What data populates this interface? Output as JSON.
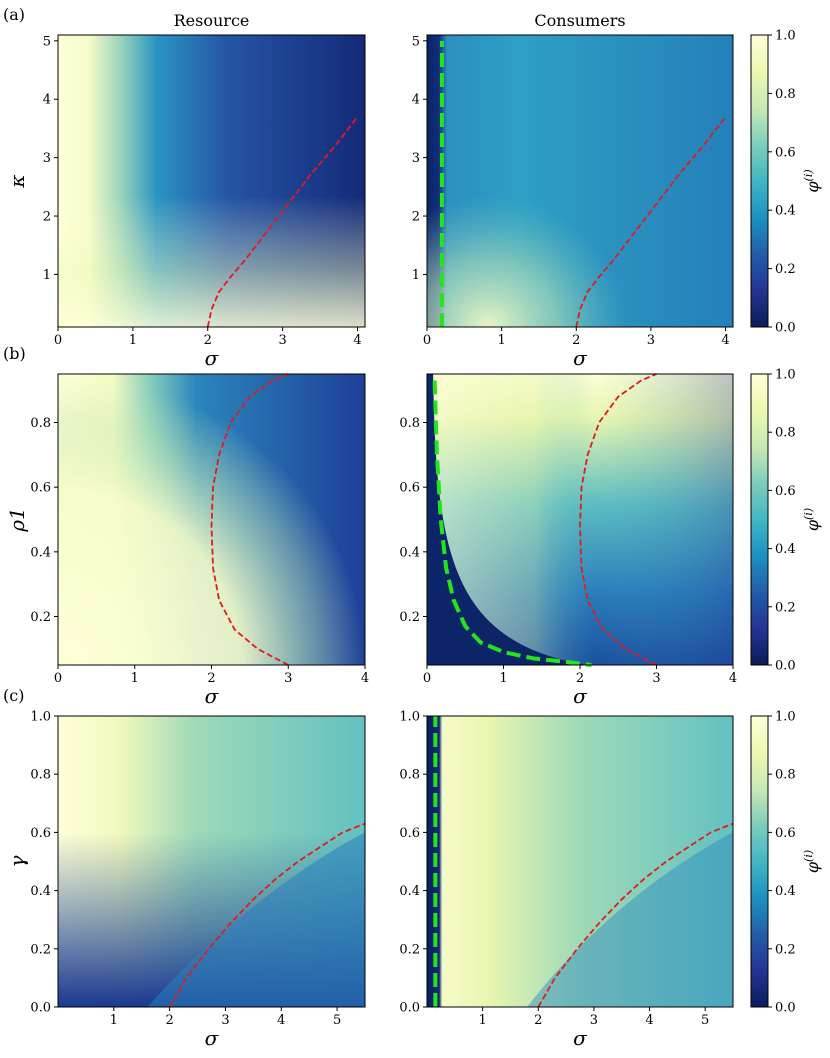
{
  "figure": {
    "column_titles": [
      "Resource",
      "Consumers"
    ],
    "colorbar": {
      "label": "φ(i)",
      "ticks": [
        0.0,
        0.2,
        0.4,
        0.6,
        0.8,
        1.0
      ],
      "tick_labels": [
        "0.0",
        "0.2",
        "0.4",
        "0.6",
        "0.8",
        "1.0"
      ],
      "colors": [
        "#081d58",
        "#253494",
        "#225ea8",
        "#1d91c0",
        "#41b6c4",
        "#7fcdbb",
        "#c7e9b4",
        "#edf8b1",
        "#ffffd9"
      ]
    },
    "line_colors": {
      "red": "#e41a1c",
      "green": "#22e61c"
    }
  },
  "chart_data": [
    {
      "type": "heatmap",
      "panel_label": "(a)",
      "column": "Resource",
      "xlabel": "σ",
      "ylabel": "κ",
      "xlim": [
        0,
        4.1
      ],
      "ylim": [
        0.1,
        5.1
      ],
      "xticks": [
        0,
        1,
        2,
        3,
        4
      ],
      "xtick_labels": [
        "0",
        "1",
        "2",
        "3",
        "4"
      ],
      "yticks": [
        1,
        2,
        3,
        4,
        5
      ],
      "ytick_labels": [
        "1",
        "2",
        "3",
        "4",
        "5"
      ],
      "red_curve": {
        "x": [
          2.0,
          2.05,
          2.15,
          2.3,
          2.5,
          2.8,
          3.1,
          3.4,
          3.7,
          4.0
        ],
        "y": [
          0.1,
          0.4,
          0.7,
          0.95,
          1.25,
          1.75,
          2.25,
          2.75,
          3.2,
          3.7
        ]
      },
      "green_curve": null
    },
    {
      "type": "heatmap",
      "panel_label": "",
      "column": "Consumers",
      "xlabel": "σ",
      "ylabel": "",
      "xlim": [
        0,
        4.1
      ],
      "ylim": [
        0.1,
        5.1
      ],
      "xticks": [
        0,
        1,
        2,
        3,
        4
      ],
      "xtick_labels": [
        "0",
        "1",
        "2",
        "3",
        "4"
      ],
      "yticks": [
        1,
        2,
        3,
        4,
        5
      ],
      "ytick_labels": [
        "1",
        "2",
        "3",
        "4",
        "5"
      ],
      "red_curve": {
        "x": [
          2.0,
          2.05,
          2.15,
          2.3,
          2.5,
          2.8,
          3.1,
          3.4,
          3.7,
          4.0
        ],
        "y": [
          0.1,
          0.4,
          0.7,
          0.95,
          1.25,
          1.75,
          2.25,
          2.75,
          3.2,
          3.7
        ]
      },
      "green_curve": {
        "x": [
          0.2,
          0.2
        ],
        "y": [
          0.1,
          5.0
        ]
      }
    },
    {
      "type": "heatmap",
      "panel_label": "(b)",
      "column": "Resource",
      "xlabel": "σ",
      "ylabel": "ρ1",
      "xlim": [
        0,
        4
      ],
      "ylim": [
        0.05,
        0.95
      ],
      "xticks": [
        0,
        1,
        2,
        3,
        4
      ],
      "xtick_labels": [
        "0",
        "1",
        "2",
        "3",
        "4"
      ],
      "yticks": [
        0.2,
        0.4,
        0.6,
        0.8
      ],
      "ytick_labels": [
        "0.2",
        "0.4",
        "0.6",
        "0.8"
      ],
      "red_curve": {
        "x": [
          3.0,
          2.6,
          2.3,
          2.1,
          2.02,
          2.0,
          2.02,
          2.1,
          2.25,
          2.5,
          2.8,
          3.0
        ],
        "y": [
          0.05,
          0.1,
          0.16,
          0.25,
          0.35,
          0.48,
          0.6,
          0.7,
          0.8,
          0.88,
          0.93,
          0.95
        ]
      },
      "green_curve": null
    },
    {
      "type": "heatmap",
      "panel_label": "",
      "column": "Consumers",
      "xlabel": "σ",
      "ylabel": "",
      "xlim": [
        0,
        4
      ],
      "ylim": [
        0.05,
        0.95
      ],
      "xticks": [
        0,
        1,
        2,
        3,
        4
      ],
      "xtick_labels": [
        "0",
        "1",
        "2",
        "3",
        "4"
      ],
      "yticks": [
        0.2,
        0.4,
        0.6,
        0.8
      ],
      "ytick_labels": [
        "0.2",
        "0.4",
        "0.6",
        "0.8"
      ],
      "red_curve": {
        "x": [
          3.0,
          2.6,
          2.3,
          2.1,
          2.02,
          2.0,
          2.02,
          2.1,
          2.25,
          2.5,
          2.8,
          3.0
        ],
        "y": [
          0.05,
          0.1,
          0.16,
          0.25,
          0.35,
          0.48,
          0.6,
          0.7,
          0.8,
          0.88,
          0.93,
          0.95
        ]
      },
      "green_curve": {
        "x": [
          0.1,
          0.13,
          0.18,
          0.25,
          0.35,
          0.5,
          0.7,
          1.0,
          1.4,
          1.8,
          2.15
        ],
        "y": [
          0.93,
          0.7,
          0.5,
          0.35,
          0.25,
          0.17,
          0.12,
          0.09,
          0.07,
          0.06,
          0.05
        ]
      }
    },
    {
      "type": "heatmap",
      "panel_label": "(c)",
      "column": "Resource",
      "xlabel": "σ",
      "ylabel": "γ",
      "xlim": [
        0,
        5.5
      ],
      "ylim": [
        0,
        1
      ],
      "xticks": [
        1,
        2,
        3,
        4,
        5
      ],
      "xtick_labels": [
        "1",
        "2",
        "3",
        "4",
        "5"
      ],
      "yticks": [
        0.0,
        0.2,
        0.4,
        0.6,
        0.8,
        1.0
      ],
      "ytick_labels": [
        "0.0",
        "0.2",
        "0.4",
        "0.6",
        "0.8",
        "1.0"
      ],
      "red_curve": {
        "x": [
          2.0,
          2.3,
          2.7,
          3.1,
          3.5,
          3.9,
          4.3,
          4.7,
          5.1,
          5.5
        ],
        "y": [
          0.0,
          0.1,
          0.2,
          0.29,
          0.37,
          0.44,
          0.5,
          0.55,
          0.6,
          0.63
        ]
      },
      "green_curve": null
    },
    {
      "type": "heatmap",
      "panel_label": "",
      "column": "Consumers",
      "xlabel": "σ",
      "ylabel": "",
      "xlim": [
        0,
        5.5
      ],
      "ylim": [
        0,
        1
      ],
      "xticks": [
        1,
        2,
        3,
        4,
        5
      ],
      "xtick_labels": [
        "1",
        "2",
        "3",
        "4",
        "5"
      ],
      "yticks": [
        0.0,
        0.2,
        0.4,
        0.6,
        0.8,
        1.0
      ],
      "ytick_labels": [
        "0.0",
        "0.2",
        "0.4",
        "0.6",
        "0.8",
        "1.0"
      ],
      "red_curve": {
        "x": [
          2.0,
          2.3,
          2.7,
          3.1,
          3.5,
          3.9,
          4.3,
          4.7,
          5.1,
          5.5
        ],
        "y": [
          0.0,
          0.1,
          0.2,
          0.29,
          0.37,
          0.44,
          0.5,
          0.55,
          0.6,
          0.63
        ]
      },
      "green_curve": {
        "x": [
          0.15,
          0.15
        ],
        "y": [
          0.0,
          1.0
        ]
      }
    }
  ]
}
